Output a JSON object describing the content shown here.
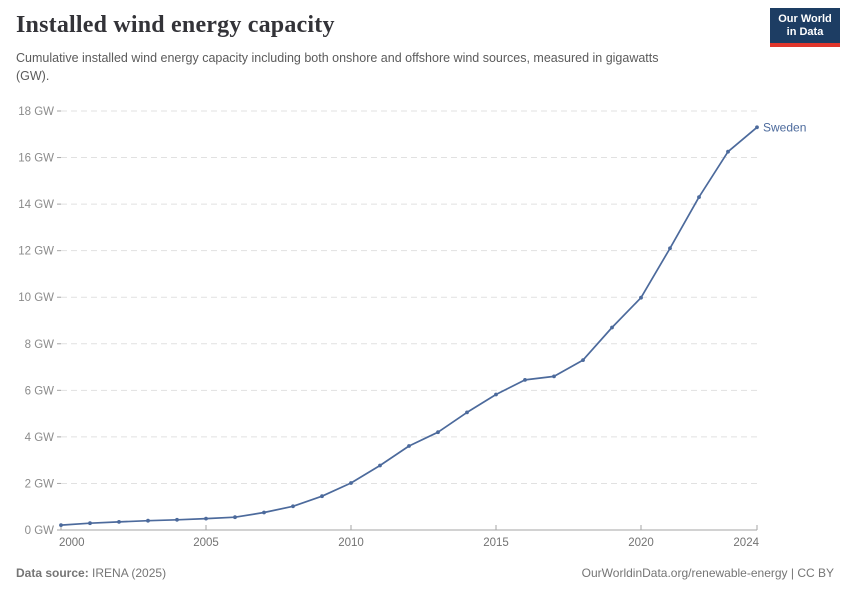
{
  "header": {
    "title": "Installed wind energy capacity",
    "subtitle": "Cumulative installed wind energy capacity including both onshore and offshore wind sources, measured in gigawatts (GW).",
    "logo": {
      "line1": "Our World",
      "line2": "in Data",
      "bg_color": "#1d3d63",
      "stripe_color": "#e0362c"
    }
  },
  "chart_data": {
    "type": "line",
    "title": "Installed wind energy capacity",
    "xlabel": "",
    "ylabel": "",
    "x": [
      2000,
      2001,
      2002,
      2003,
      2004,
      2005,
      2006,
      2007,
      2008,
      2009,
      2010,
      2011,
      2012,
      2013,
      2014,
      2015,
      2016,
      2017,
      2018,
      2019,
      2020,
      2021,
      2022,
      2023,
      2024
    ],
    "series": [
      {
        "name": "Sweden",
        "color": "#4c6a9c",
        "values": [
          0.21,
          0.29,
          0.35,
          0.4,
          0.44,
          0.49,
          0.55,
          0.75,
          1.02,
          1.45,
          2.02,
          2.77,
          3.61,
          4.2,
          5.05,
          5.82,
          6.45,
          6.6,
          7.3,
          8.7,
          9.98,
          12.1,
          14.3,
          16.25,
          17.3
        ]
      }
    ],
    "ylim": [
      0,
      18
    ],
    "yticks": [
      0,
      2,
      4,
      6,
      8,
      10,
      12,
      14,
      16,
      18
    ],
    "ytick_suffix": " GW",
    "xticks": [
      2000,
      2005,
      2010,
      2015,
      2020,
      2024
    ],
    "grid": "horizontal-dashed",
    "legend": "end-of-line-label",
    "end_label": "Sweden"
  },
  "footer": {
    "source_label": "Data source:",
    "source_value": " IRENA (2025)",
    "right_text": "OurWorldinData.org/renewable-energy | CC BY"
  },
  "colors": {
    "line": "#4c6a9c",
    "grid": "#e1e1e1",
    "axis": "#a6a6a6",
    "y_label": "#8b8b8b",
    "x_label": "#737373",
    "title": "#333338",
    "subtitle": "#5b5b5b",
    "footer": "#757575"
  }
}
